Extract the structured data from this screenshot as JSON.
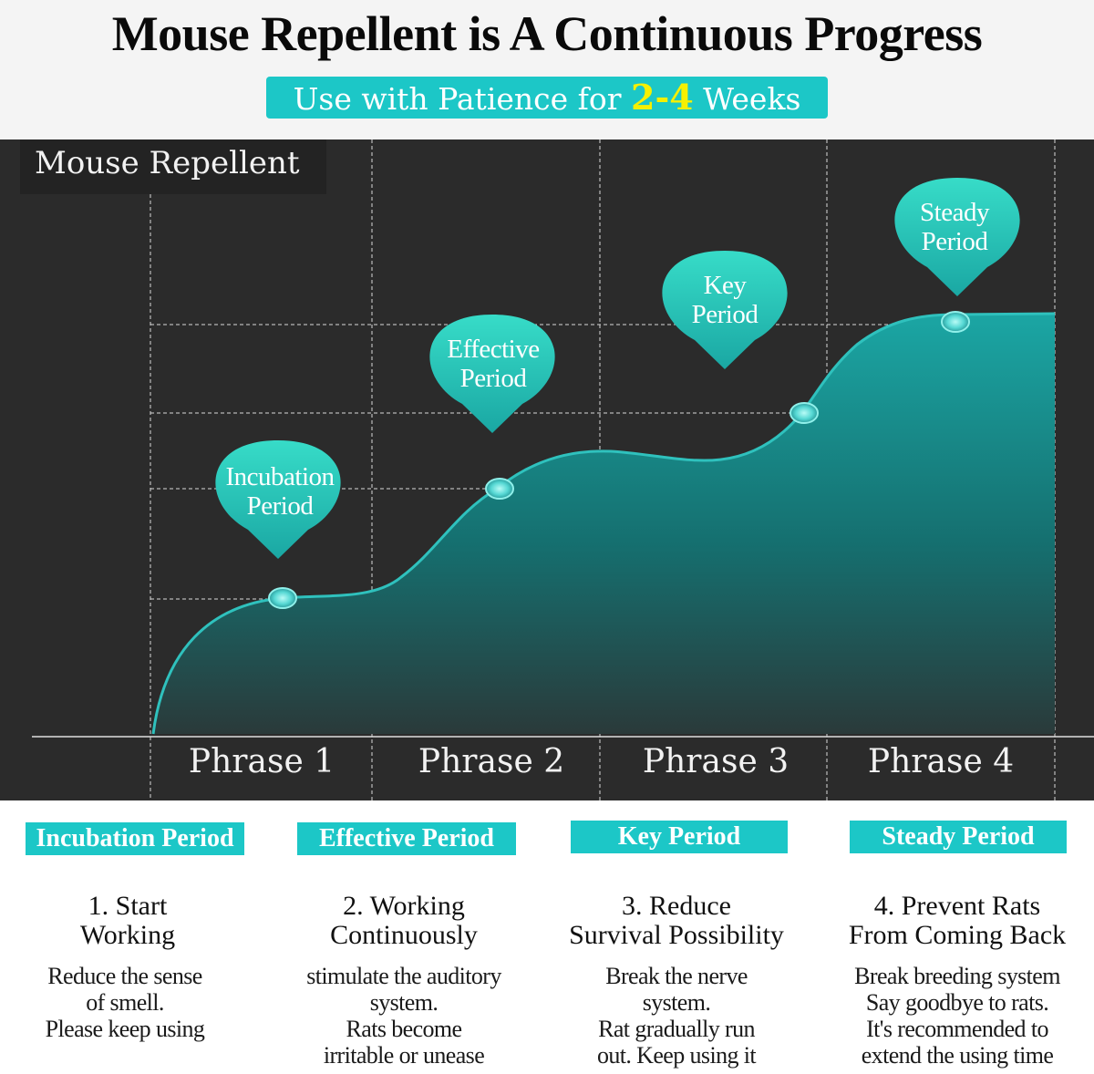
{
  "header": {
    "title": "Mouse Repellent is A Continuous Progress",
    "subtitle_before": "Use with Patience for ",
    "subtitle_highlight": "2-4",
    "subtitle_after": " Weeks"
  },
  "chart": {
    "label": "Mouse Repellent",
    "bubbles": [
      {
        "line1": "Incubation",
        "line2": "Period"
      },
      {
        "line1": "Effective",
        "line2": "Period"
      },
      {
        "line1": "Key",
        "line2": "Period"
      },
      {
        "line1": "Steady",
        "line2": "Period"
      }
    ],
    "phases": [
      "Phrase 1",
      "Phrase 2",
      "Phrase 3",
      "Phrase 4"
    ]
  },
  "steps": [
    {
      "badge": "Incubation Period",
      "title": [
        "1. Start",
        "Working"
      ],
      "desc": [
        "Reduce the sense",
        "of smell.",
        "Please keep using"
      ]
    },
    {
      "badge": "Effective Period",
      "title": [
        "2. Working",
        "Continuously"
      ],
      "desc": [
        "stimulate the auditory",
        "system.",
        "Rats become",
        "irritable or unease"
      ]
    },
    {
      "badge": "Key Period",
      "title": [
        "3. Reduce",
        "Survival Possibility"
      ],
      "desc": [
        "Break the nerve",
        "system.",
        "Rat gradually run",
        "out. Keep using it"
      ]
    },
    {
      "badge": "Steady Period",
      "title": [
        "4. Prevent Rats",
        "From Coming Back"
      ],
      "desc": [
        "Break breeding system",
        "Say goodbye to rats.",
        "It's recommended to",
        "extend the using time"
      ]
    }
  ],
  "colors": {
    "accent": "#1cc7c7",
    "highlight": "#f6f000",
    "panel": "#2b2b2b"
  }
}
